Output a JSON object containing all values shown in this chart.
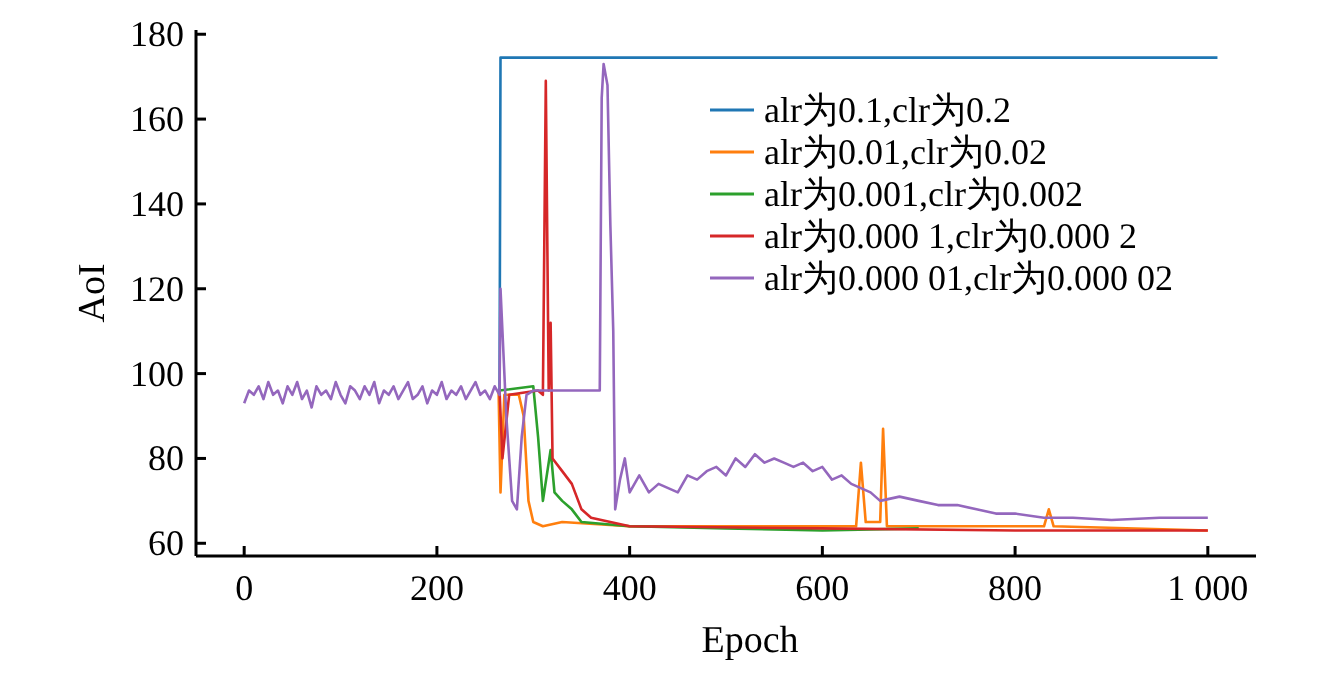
{
  "chart_data": {
    "type": "line",
    "xlabel": "Epoch",
    "ylabel": "AoI",
    "xlim": [
      -50,
      1050
    ],
    "ylim": [
      57,
      181
    ],
    "xticks": [
      0,
      200,
      400,
      600,
      800,
      {
        "value": 1000,
        "label": "1 000"
      }
    ],
    "yticks": [
      60,
      80,
      100,
      120,
      140,
      160,
      180
    ],
    "legend": "top right",
    "series": [
      {
        "name": "alr为0.1,clr为0.2",
        "color": "#1f77b4",
        "x": [
          264,
          265,
          266,
          1010
        ],
        "values": [
          96,
          96,
          174.5,
          174.5
        ]
      },
      {
        "name": "alr为0.01,clr为0.02",
        "color": "#ff7f0e",
        "x": [
          264,
          266,
          270,
          285,
          290,
          295,
          300,
          310,
          330,
          400,
          600,
          635,
          640,
          645,
          660,
          663,
          667,
          700,
          830,
          835,
          840,
          1000
        ],
        "values": [
          96,
          72,
          95,
          95,
          90,
          70,
          65,
          64,
          65,
          64,
          64,
          64,
          79,
          65,
          65,
          87,
          64,
          64,
          64,
          68,
          64,
          63
        ]
      },
      {
        "name": "alr为0.001,clr为0.002",
        "color": "#2ca02c",
        "x": [
          265,
          300,
          305,
          310,
          318,
          322,
          330,
          340,
          350,
          400,
          500,
          600,
          700
        ],
        "values": [
          96,
          97,
          85,
          70,
          82,
          72,
          70,
          68,
          65,
          64,
          63.5,
          63,
          63.5
        ]
      },
      {
        "name": "alr为0.000 1,clr为0.000 2",
        "color": "#d62728",
        "x": [
          265,
          268,
          275,
          305,
          310,
          313,
          316,
          318,
          320,
          330,
          340,
          350,
          360,
          400,
          600,
          800,
          1000
        ],
        "values": [
          96,
          80,
          95,
          96,
          95,
          169,
          96,
          112,
          80,
          77,
          74,
          68,
          66,
          64,
          63.5,
          63,
          63
        ]
      },
      {
        "name": "alr为0.000 01,clr为0.000 02",
        "color": "#9467bd",
        "x": [
          0,
          5,
          10,
          15,
          20,
          25,
          30,
          35,
          40,
          45,
          50,
          55,
          60,
          65,
          70,
          75,
          80,
          85,
          90,
          95,
          100,
          105,
          110,
          115,
          120,
          125,
          130,
          135,
          140,
          145,
          150,
          155,
          160,
          165,
          170,
          175,
          180,
          185,
          190,
          195,
          200,
          205,
          210,
          215,
          220,
          225,
          230,
          235,
          240,
          245,
          250,
          255,
          260,
          265,
          266,
          272,
          278,
          283,
          288,
          293,
          300,
          320,
          340,
          369,
          371,
          373,
          377,
          380,
          383,
          385,
          390,
          395,
          400,
          410,
          420,
          430,
          440,
          450,
          460,
          470,
          480,
          490,
          500,
          510,
          520,
          530,
          540,
          550,
          560,
          570,
          580,
          590,
          600,
          610,
          620,
          630,
          640,
          650,
          660,
          680,
          700,
          720,
          740,
          760,
          780,
          800,
          830,
          860,
          900,
          950,
          1000
        ],
        "values": [
          93,
          96,
          95,
          97,
          94,
          98,
          95,
          96,
          93,
          97,
          95,
          98,
          94,
          96,
          92,
          97,
          95,
          96,
          94,
          98,
          95,
          93,
          97,
          96,
          94,
          97,
          95,
          98,
          93,
          96,
          95,
          97,
          94,
          96,
          98,
          94,
          95,
          97,
          93,
          96,
          95,
          98,
          94,
          96,
          95,
          97,
          94,
          96,
          98,
          95,
          96,
          94,
          97,
          95,
          120,
          90,
          70,
          68,
          85,
          95,
          96,
          96,
          96,
          96,
          165,
          173,
          168,
          135,
          110,
          68,
          75,
          80,
          72,
          76,
          72,
          74,
          73,
          72,
          76,
          75,
          77,
          78,
          76,
          80,
          78,
          81,
          79,
          80,
          79,
          78,
          79,
          77,
          78,
          75,
          76,
          74,
          73,
          72,
          70,
          71,
          70,
          69,
          69,
          68,
          67,
          67,
          66,
          66,
          65.5,
          66,
          66
        ]
      }
    ]
  }
}
